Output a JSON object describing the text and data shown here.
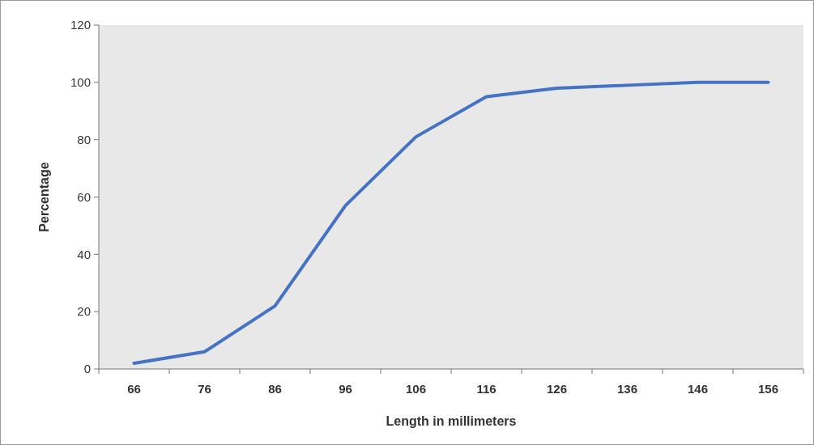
{
  "chart_data": {
    "type": "line",
    "xlabel": "Length  in millimeters",
    "ylabel": "Percentage",
    "categories": [
      "66",
      "76",
      "86",
      "96",
      "106",
      "116",
      "126",
      "136",
      "146",
      "156"
    ],
    "series": [
      {
        "color": "#4472c4",
        "values": [
          2,
          6,
          22,
          57,
          81,
          95,
          98,
          99,
          100,
          100
        ]
      }
    ],
    "ylim": [
      0,
      120
    ],
    "yticks": [
      0,
      20,
      40,
      60,
      80,
      100,
      120
    ],
    "marker": "none",
    "line_style": "solid"
  }
}
